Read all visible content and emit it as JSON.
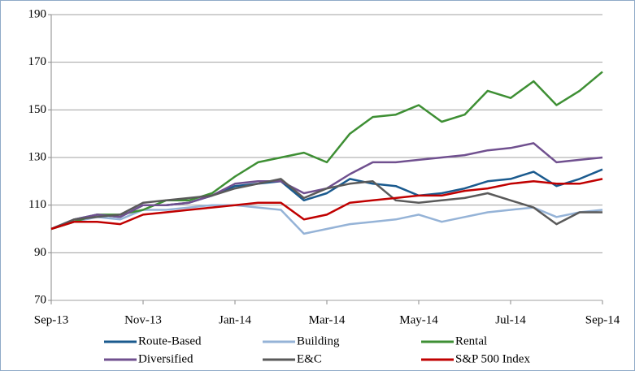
{
  "chart_data": {
    "type": "line",
    "x": [
      0,
      0.5,
      1,
      1.5,
      2,
      2.5,
      3,
      3.5,
      4,
      4.5,
      5,
      5.5,
      6,
      6.5,
      7,
      7.5,
      8,
      8.5,
      9,
      9.5,
      10,
      10.5,
      11,
      11.5,
      12
    ],
    "xlim": [
      0,
      12
    ],
    "xticks": [
      {
        "value": 0,
        "label": "Sep-13"
      },
      {
        "value": 2,
        "label": "Nov-13"
      },
      {
        "value": 4,
        "label": "Jan-14"
      },
      {
        "value": 6,
        "label": "Mar-14"
      },
      {
        "value": 8,
        "label": "May-14"
      },
      {
        "value": 10,
        "label": "Jul-14"
      },
      {
        "value": 12,
        "label": "Sep-14"
      }
    ],
    "ylim": [
      70,
      190
    ],
    "yticks": [
      70,
      90,
      110,
      130,
      150,
      170,
      190
    ],
    "grid": true,
    "legend": "bottom",
    "series": [
      {
        "name": "Route-Based",
        "color": "#1a5a8e",
        "values": [
          100,
          104,
          106,
          105,
          110,
          110,
          111,
          114,
          118,
          119,
          120,
          112,
          115,
          121,
          119,
          118,
          114,
          115,
          117,
          120,
          121,
          124,
          118,
          121,
          125
        ]
      },
      {
        "name": "Building",
        "color": "#95b3d7",
        "values": [
          100,
          103,
          105,
          104,
          108,
          108,
          109,
          110,
          110,
          109,
          108,
          98,
          100,
          102,
          103,
          104,
          106,
          103,
          105,
          107,
          108,
          109,
          105,
          107,
          108
        ]
      },
      {
        "name": "Rental",
        "color": "#3e8f34",
        "values": [
          100,
          103,
          106,
          106,
          108,
          112,
          112,
          115,
          122,
          128,
          130,
          132,
          128,
          140,
          147,
          148,
          152,
          145,
          148,
          158,
          155,
          162,
          152,
          158,
          166
        ]
      },
      {
        "name": "Diversified",
        "color": "#70508f",
        "values": [
          100,
          104,
          106,
          105,
          110,
          110,
          111,
          114,
          119,
          120,
          120,
          115,
          117,
          123,
          128,
          128,
          129,
          130,
          131,
          133,
          134,
          136,
          128,
          129,
          130
        ]
      },
      {
        "name": "E&C",
        "color": "#5a5a5a",
        "values": [
          100,
          104,
          105,
          106,
          111,
          112,
          113,
          114,
          117,
          119,
          121,
          113,
          117,
          119,
          120,
          112,
          111,
          112,
          113,
          115,
          112,
          109,
          102,
          107,
          107
        ]
      },
      {
        "name": "S&P 500 Index",
        "color": "#c00000",
        "values": [
          100,
          103,
          103,
          102,
          106,
          107,
          108,
          109,
          110,
          111,
          111,
          104,
          106,
          111,
          112,
          113,
          114,
          114,
          116,
          117,
          119,
          120,
          119,
          119,
          121
        ]
      }
    ]
  }
}
